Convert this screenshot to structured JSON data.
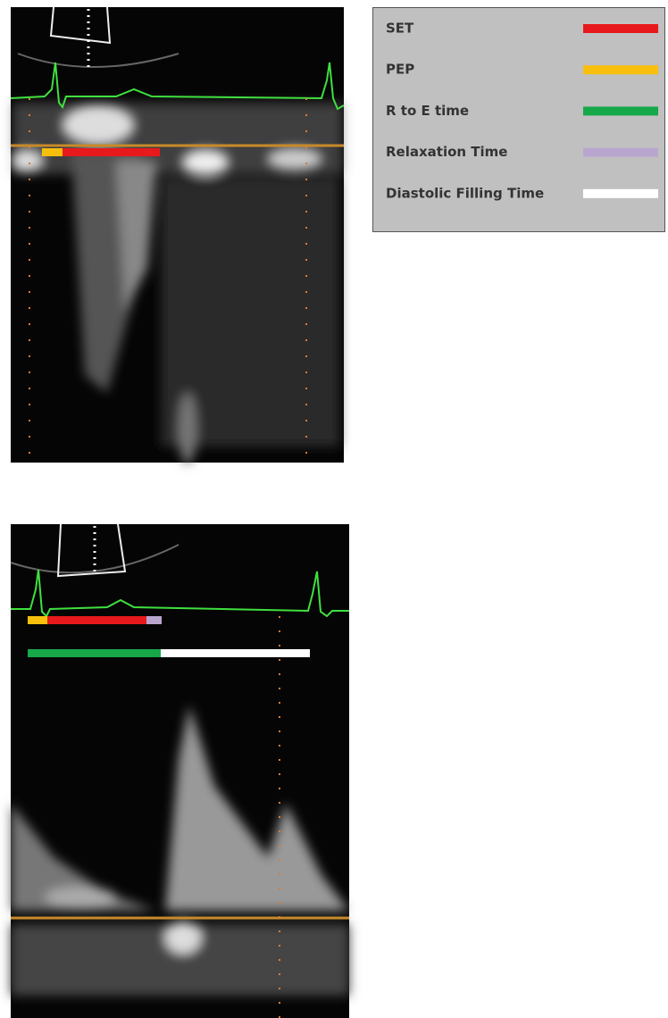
{
  "legend": {
    "items": [
      {
        "label": "SET",
        "color": "#e8191c"
      },
      {
        "label": "PEP",
        "color": "#f8c00c"
      },
      {
        "label": "R to E time",
        "color": "#17a84a"
      },
      {
        "label": "Relaxation Time",
        "color": "#b9a6cf"
      },
      {
        "label": "Diastolic Filling Time",
        "color": "#ffffff"
      }
    ]
  }
}
